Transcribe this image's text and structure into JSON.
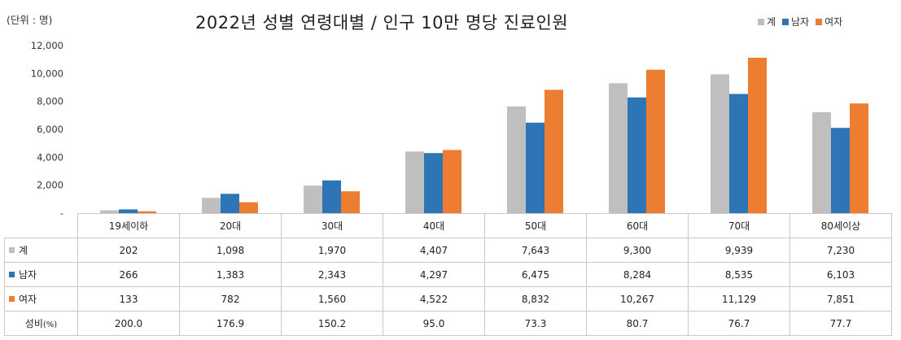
{
  "unit_label": "(단위 : 명)",
  "chart_data": {
    "type": "bar",
    "title": "2022년 성별 연령대별 / 인구 10만 명당 진료인원",
    "categories": [
      "19세이하",
      "20대",
      "30대",
      "40대",
      "50대",
      "60대",
      "70대",
      "80세이상"
    ],
    "series": [
      {
        "name": "계",
        "color": "#bfbfbf",
        "values": [
          202,
          1098,
          1970,
          4407,
          7643,
          9300,
          9939,
          7230
        ]
      },
      {
        "name": "남자",
        "color": "#2e75b6",
        "values": [
          266,
          1383,
          2343,
          4297,
          6475,
          8284,
          8535,
          6103
        ]
      },
      {
        "name": "여자",
        "color": "#ed7d31",
        "values": [
          133,
          782,
          1560,
          4522,
          8832,
          10267,
          11129,
          7851
        ]
      }
    ],
    "ylim": [
      0,
      12000
    ],
    "yticks": [
      "-",
      "2,000",
      "4,000",
      "6,000",
      "8,000",
      "10,000",
      "12,000"
    ],
    "grid": false,
    "legend_position": "top-right"
  },
  "table": {
    "rows": [
      {
        "label": "계",
        "color": "#bfbfbf",
        "cells": [
          "202",
          "1,098",
          "1,970",
          "4,407",
          "7,643",
          "9,300",
          "9,939",
          "7,230"
        ]
      },
      {
        "label": "남자",
        "color": "#2e75b6",
        "cells": [
          "266",
          "1,383",
          "2,343",
          "4,297",
          "6,475",
          "8,284",
          "8,535",
          "6,103"
        ]
      },
      {
        "label": "여자",
        "color": "#ed7d31",
        "cells": [
          "133",
          "782",
          "1,560",
          "4,522",
          "8,832",
          "10,267",
          "11,129",
          "7,851"
        ]
      }
    ],
    "ratio_row": {
      "label": "성비",
      "label_suffix": "(%)",
      "cells": [
        "200.0",
        "176.9",
        "150.2",
        "95.0",
        "73.3",
        "80.7",
        "76.7",
        "77.7"
      ]
    }
  }
}
